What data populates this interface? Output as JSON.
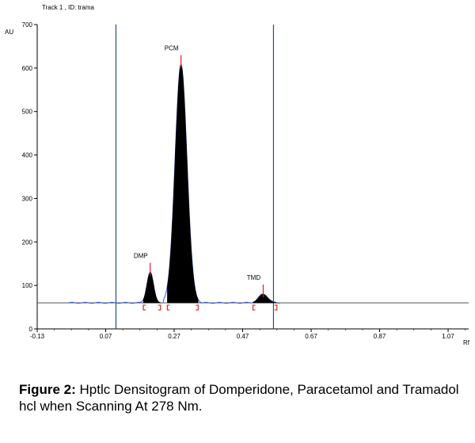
{
  "chart_data": {
    "type": "line",
    "header": "Track  1  , ID: trama",
    "ylabel": "AU",
    "xlabel": "Rf",
    "ylim": [
      0,
      700
    ],
    "xlim": [
      -0.13,
      1.13
    ],
    "yticks": [
      0,
      100,
      200,
      300,
      400,
      500,
      600,
      700
    ],
    "xticks": [
      -0.13,
      0.07,
      0.27,
      0.47,
      0.67,
      0.87,
      1.07
    ],
    "xtick_labels": [
      "-0.13",
      "0.07",
      "0.27",
      "0.47",
      "0.67",
      "0.87",
      "1.07"
    ],
    "baseline_au": 60,
    "vertical_lines_rf": [
      0.1,
      0.56
    ],
    "colors": {
      "trace": "#3f5fd0",
      "marker": "#e02020",
      "fill": "#000000",
      "baseline": "#555555",
      "vline": "#2a4f7a"
    },
    "peaks": [
      {
        "label": "DMP",
        "rf": 0.2,
        "height_au": 130,
        "start_rf": 0.18,
        "end_rf": 0.23
      },
      {
        "label": "PCM",
        "rf": 0.29,
        "height_au": 608,
        "start_rf": 0.25,
        "end_rf": 0.34
      },
      {
        "label": "TMD",
        "rf": 0.53,
        "height_au": 80,
        "start_rf": 0.5,
        "end_rf": 0.57
      }
    ]
  },
  "caption": {
    "bold": "Figure 2:",
    "text": " Hptlc Densitogram of Domperidone, Paracetamol and Tramadol hcl when Scanning At 278 Nm."
  }
}
